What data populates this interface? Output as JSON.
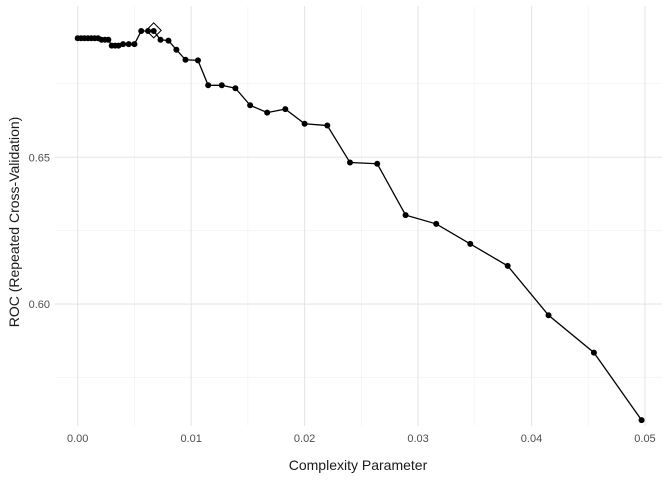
{
  "chart_data": {
    "type": "line",
    "xlabel": "Complexity Parameter",
    "ylabel": "ROC (Repeated Cross-Validation)",
    "xlim": [
      -0.002,
      0.0515
    ],
    "ylim": [
      0.5585,
      0.7015
    ],
    "x_ticks": [
      0.0,
      0.01,
      0.02,
      0.03,
      0.04,
      0.05
    ],
    "x_tick_labels": [
      "0.00",
      "0.01",
      "0.02",
      "0.03",
      "0.04",
      "0.05"
    ],
    "y_ticks": [
      0.6,
      0.65
    ],
    "y_tick_labels": [
      "0.60",
      "0.65"
    ],
    "grid": true,
    "line_color": "#000000",
    "best_point": {
      "x": 0.0067,
      "y": 0.6932
    },
    "x": [
      0.0,
      0.0003,
      0.0006,
      0.0009,
      0.0012,
      0.0015,
      0.0018,
      0.0021,
      0.0024,
      0.0027,
      0.003,
      0.0033,
      0.0036,
      0.004,
      0.0045,
      0.005,
      0.0056,
      0.0062,
      0.0067,
      0.0073,
      0.008,
      0.0087,
      0.0095,
      0.0106,
      0.0115,
      0.0127,
      0.0139,
      0.0152,
      0.0167,
      0.0183,
      0.02,
      0.022,
      0.024,
      0.0264,
      0.0289,
      0.0316,
      0.0346,
      0.0379,
      0.0415,
      0.0455,
      0.0497
    ],
    "y": [
      0.6905,
      0.6905,
      0.6905,
      0.6905,
      0.6905,
      0.6905,
      0.6905,
      0.69,
      0.69,
      0.69,
      0.688,
      0.688,
      0.688,
      0.6885,
      0.6885,
      0.6885,
      0.693,
      0.693,
      0.693,
      0.69,
      0.6897,
      0.6866,
      0.6832,
      0.683,
      0.6745,
      0.6745,
      0.6735,
      0.6677,
      0.6652,
      0.6664,
      0.6614,
      0.6608,
      0.6482,
      0.6478,
      0.6303,
      0.6273,
      0.6205,
      0.613,
      0.5962,
      0.5835,
      0.5605
    ]
  }
}
